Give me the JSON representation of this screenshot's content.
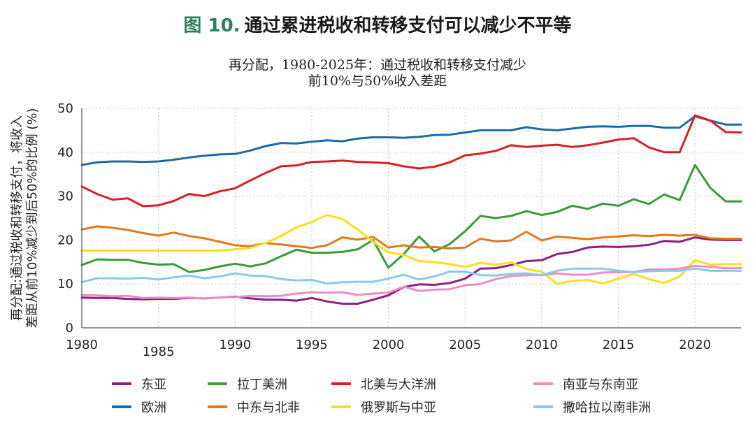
{
  "figure": {
    "number": "图 10.",
    "title": "通过累进税收和转移支付可以减少不平等"
  },
  "chart_data": {
    "type": "line",
    "title_lines": [
      "再分配，1980-2025年：通过税收和转移支付减少",
      "前10%与50%收入差距"
    ],
    "ylabel_lines": [
      "再分配:通过税收和转移支付，将收入",
      "差距从前10%减少到后50%的比例 (%)"
    ],
    "xlabel": "",
    "ylim": [
      0,
      50
    ],
    "yticks": [
      0,
      10,
      20,
      30,
      40,
      50
    ],
    "xlim": [
      1980,
      2023
    ],
    "xticks": [
      1980,
      1985,
      1990,
      1995,
      2000,
      2005,
      2010,
      2015,
      2020
    ],
    "grid": true,
    "legend_position": "bottom",
    "x": [
      1980,
      1981,
      1982,
      1983,
      1984,
      1985,
      1986,
      1987,
      1988,
      1989,
      1990,
      1991,
      1992,
      1993,
      1994,
      1995,
      1996,
      1997,
      1998,
      1999,
      2000,
      2001,
      2002,
      2003,
      2004,
      2005,
      2006,
      2007,
      2008,
      2009,
      2010,
      2011,
      2012,
      2013,
      2014,
      2015,
      2016,
      2017,
      2018,
      2019,
      2020,
      2021,
      2022,
      2023
    ],
    "series": [
      {
        "name": "东亚",
        "color": "#8e1f7e",
        "values": [
          6.9,
          6.8,
          6.8,
          6.6,
          6.5,
          6.6,
          6.6,
          6.8,
          6.7,
          6.9,
          7.1,
          6.7,
          6.4,
          6.4,
          6.2,
          6.8,
          6.0,
          5.5,
          5.5,
          6.4,
          7.4,
          9.3,
          9.9,
          9.8,
          10.2,
          11.2,
          13.5,
          13.6,
          14.3,
          15.2,
          15.4,
          16.8,
          17.3,
          18.3,
          18.5,
          18.4,
          18.6,
          18.9,
          19.8,
          19.6,
          20.6,
          20.1,
          20.0,
          20.0
        ]
      },
      {
        "name": "欧洲",
        "color": "#1b6aa5",
        "values": [
          37.1,
          37.7,
          37.9,
          37.9,
          37.8,
          37.9,
          38.3,
          38.8,
          39.2,
          39.5,
          39.6,
          40.4,
          41.4,
          42.1,
          42.0,
          42.4,
          42.7,
          42.5,
          43.1,
          43.4,
          43.4,
          43.3,
          43.5,
          43.9,
          44.0,
          44.5,
          45.0,
          45.0,
          45.0,
          45.7,
          45.2,
          45.0,
          45.4,
          45.8,
          45.9,
          45.8,
          46.0,
          46.0,
          45.6,
          45.6,
          48.2,
          47.2,
          46.3,
          46.3
        ]
      },
      {
        "name": "拉丁美洲",
        "color": "#3a9a3a",
        "values": [
          14.3,
          15.6,
          15.5,
          15.5,
          14.8,
          14.4,
          14.5,
          12.7,
          13.2,
          14.0,
          14.6,
          14.0,
          14.7,
          16.3,
          17.8,
          17.1,
          17.1,
          17.3,
          17.9,
          20.0,
          13.7,
          16.8,
          20.8,
          17.4,
          19.1,
          22.0,
          25.5,
          25.0,
          25.5,
          26.6,
          25.7,
          26.4,
          27.8,
          27.1,
          28.3,
          27.8,
          29.3,
          28.2,
          30.4,
          29.1,
          37.1,
          31.9,
          28.8,
          28.8
        ]
      },
      {
        "name": "中东与北非",
        "color": "#dd7a1f",
        "values": [
          22.4,
          23.1,
          22.8,
          22.3,
          21.6,
          21.0,
          21.7,
          20.9,
          20.4,
          19.6,
          18.8,
          18.6,
          19.3,
          19.0,
          18.6,
          18.2,
          18.8,
          20.6,
          20.1,
          20.7,
          18.3,
          18.8,
          18.3,
          18.4,
          18.1,
          18.3,
          20.3,
          19.7,
          19.9,
          21.9,
          19.9,
          20.8,
          20.5,
          20.2,
          20.6,
          20.8,
          21.1,
          20.9,
          21.2,
          21.0,
          21.2,
          20.4,
          20.3,
          20.3
        ]
      },
      {
        "name": "北美与大洋洲",
        "color": "#d81f26",
        "values": [
          32.2,
          30.5,
          29.2,
          29.5,
          27.7,
          27.9,
          28.9,
          30.5,
          30.0,
          31.1,
          31.8,
          33.6,
          35.3,
          36.8,
          37.0,
          37.8,
          37.9,
          38.1,
          37.8,
          37.7,
          37.5,
          36.8,
          36.3,
          36.7,
          37.7,
          39.3,
          39.7,
          40.3,
          41.6,
          41.2,
          41.5,
          41.7,
          41.2,
          41.6,
          42.2,
          42.9,
          43.2,
          41.1,
          40.0,
          40.0,
          48.4,
          47.2,
          44.6,
          44.5
        ]
      },
      {
        "name": "俄罗斯与中亚",
        "color": "#f7df1e",
        "values": [
          17.6,
          17.6,
          17.6,
          17.6,
          17.6,
          17.6,
          17.6,
          17.6,
          17.6,
          17.6,
          17.9,
          18.2,
          19.3,
          20.9,
          22.9,
          24.1,
          25.7,
          24.8,
          22.4,
          19.6,
          17.2,
          16.6,
          15.2,
          15.0,
          14.5,
          13.9,
          14.8,
          14.4,
          14.9,
          13.4,
          12.8,
          10.0,
          10.7,
          10.9,
          10.1,
          11.2,
          12.3,
          11.1,
          10.2,
          11.7,
          15.4,
          14.4,
          14.5,
          14.5
        ]
      },
      {
        "name": "南亚与东南亚",
        "color": "#ee8dc3",
        "values": [
          7.5,
          7.4,
          7.2,
          7.3,
          6.8,
          6.9,
          6.8,
          6.9,
          6.7,
          6.9,
          7.0,
          7.3,
          7.2,
          7.3,
          7.8,
          8.1,
          8.0,
          8.1,
          7.5,
          7.8,
          8.0,
          9.4,
          8.4,
          8.7,
          8.8,
          9.7,
          10.0,
          11.1,
          11.8,
          12.0,
          12.0,
          12.4,
          12.1,
          12.1,
          12.6,
          12.7,
          12.7,
          13.3,
          13.3,
          13.5,
          14.1,
          13.9,
          13.6,
          13.6
        ]
      },
      {
        "name": "撒哈拉以南非洲",
        "color": "#88c9ec",
        "values": [
          10.4,
          11.3,
          11.3,
          11.2,
          11.4,
          11.0,
          11.5,
          11.9,
          11.3,
          11.7,
          12.4,
          11.9,
          11.8,
          11.1,
          10.8,
          10.9,
          10.1,
          10.4,
          10.5,
          10.5,
          11.2,
          12.1,
          11.0,
          11.7,
          12.8,
          12.8,
          12.0,
          11.9,
          12.3,
          12.4,
          12.0,
          13.0,
          13.5,
          13.5,
          13.5,
          13.0,
          12.7,
          12.9,
          13.0,
          13.0,
          13.5,
          13.0,
          13.0,
          13.0
        ]
      }
    ]
  },
  "legend": {
    "items": [
      {
        "label": "东亚",
        "color": "#8e1f7e"
      },
      {
        "label": "拉丁美洲",
        "color": "#3a9a3a"
      },
      {
        "label": "北美与大洋洲",
        "color": "#d81f26"
      },
      {
        "label": "南亚与东南亚",
        "color": "#ee8dc3"
      },
      {
        "label": "欧洲",
        "color": "#1b6aa5"
      },
      {
        "label": "中东与北非",
        "color": "#dd7a1f"
      },
      {
        "label": "俄罗斯与中亚",
        "color": "#f7df1e"
      },
      {
        "label": "撒哈拉以南非洲",
        "color": "#88c9ec"
      }
    ]
  }
}
